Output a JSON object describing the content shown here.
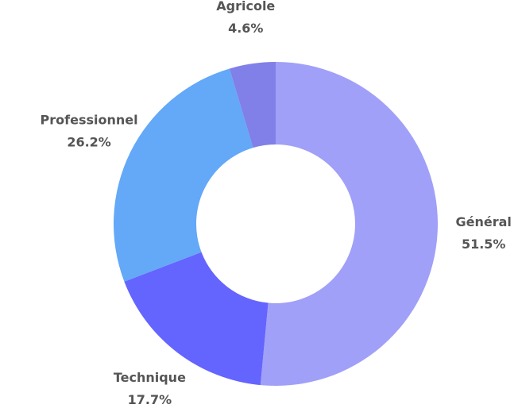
{
  "chart_data": {
    "type": "donut",
    "categories": [
      "Général",
      "Technique",
      "Professionnel",
      "Agricole"
    ],
    "values": [
      51.5,
      17.7,
      26.2,
      4.6
    ],
    "value_labels": [
      "51.5%",
      "17.7%",
      "26.2%",
      "4.6%"
    ],
    "colors": [
      "#a0a0f8",
      "#6464ff",
      "#64a8f8",
      "#8080e8"
    ]
  }
}
